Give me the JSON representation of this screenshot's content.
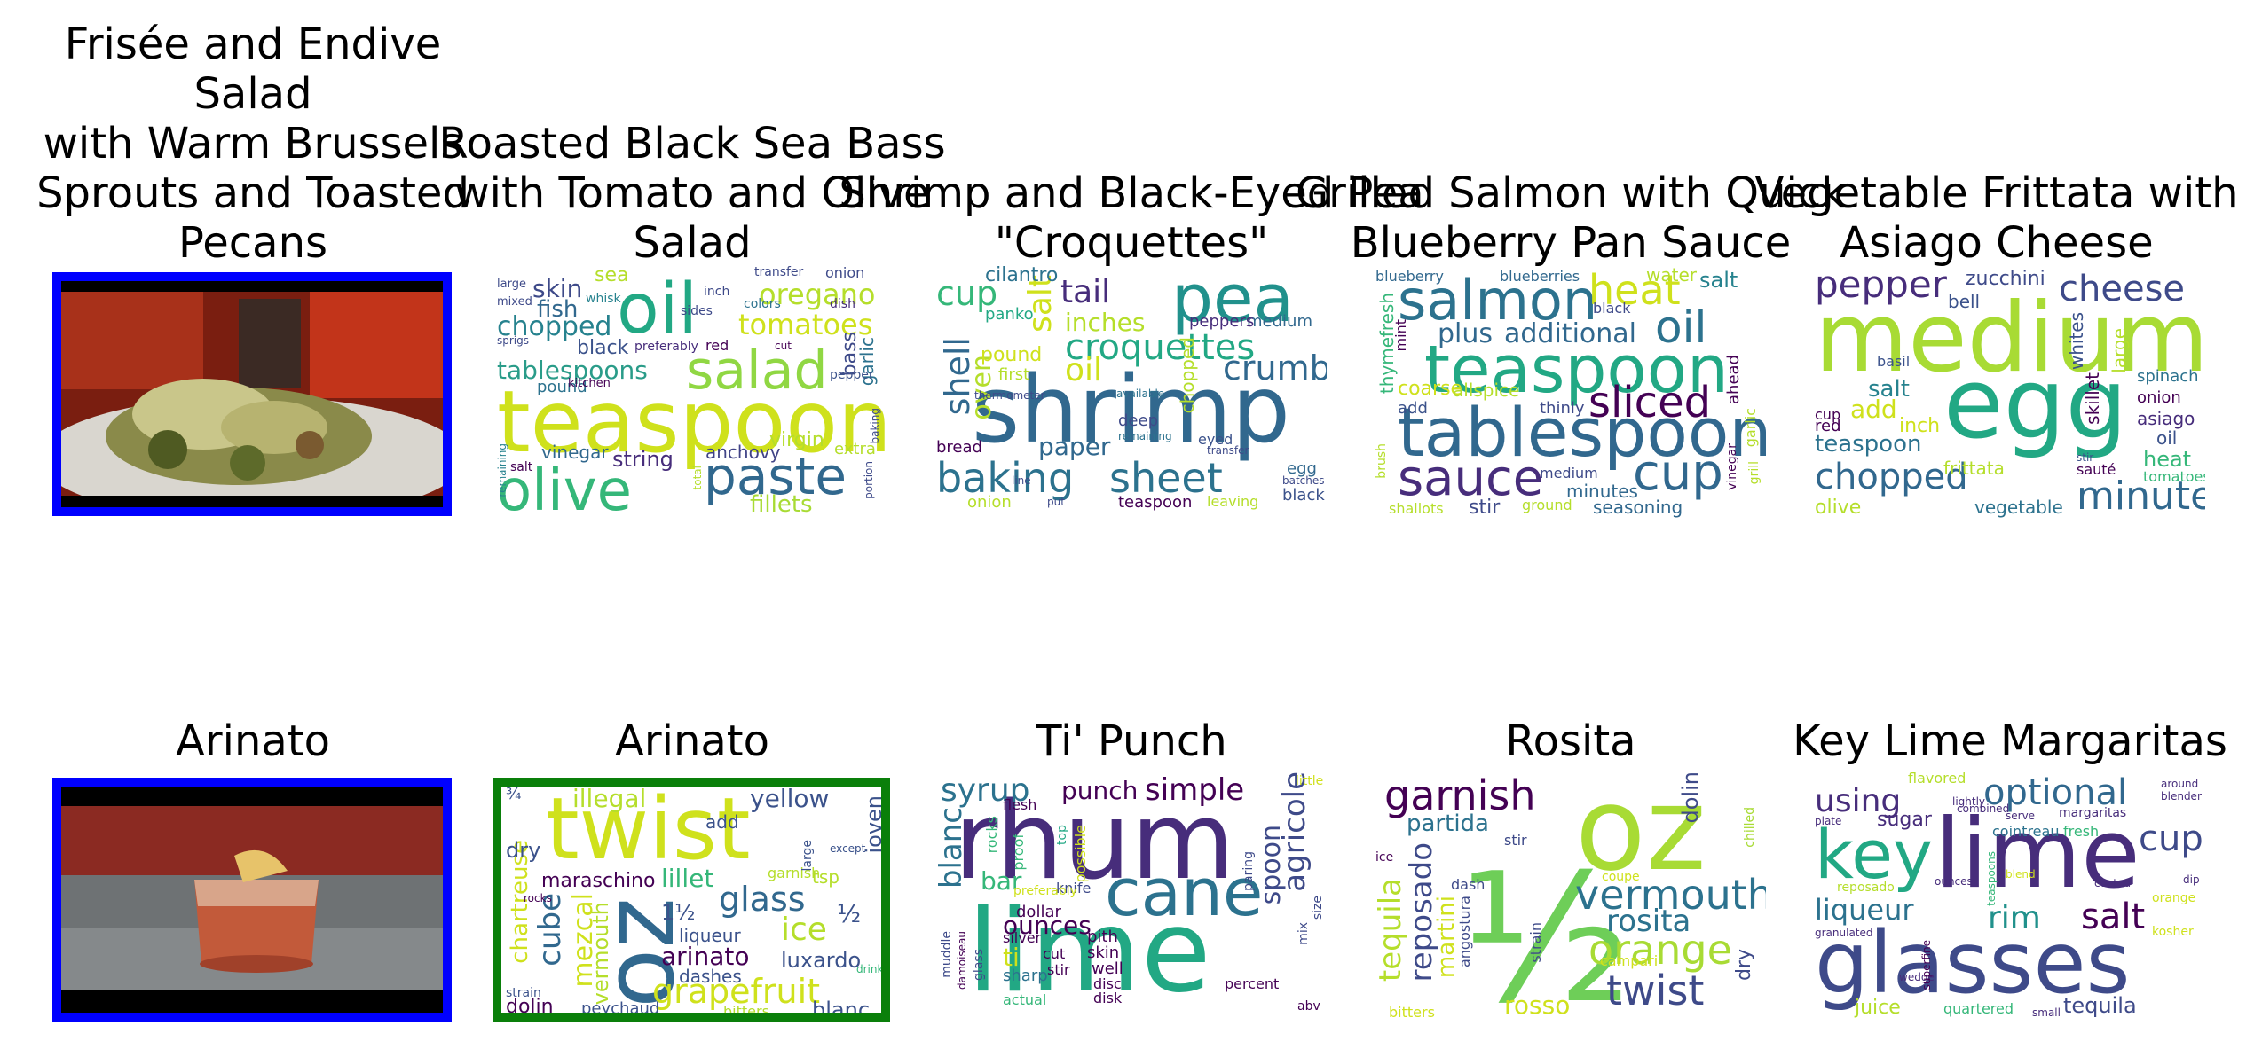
{
  "palette": {
    "frame_blue": "#0000ff",
    "frame_green": "#0a7f0a"
  },
  "top_row": [
    {
      "title_lines": [
        "Frisée and Endive",
        "Salad",
        "with Warm Brussels",
        "Sprouts and Toasted",
        "Pecans"
      ],
      "kind": "photo"
    },
    {
      "title_lines": [
        "Roasted Black Sea Bass",
        "with Tomato and Olive",
        "Salad"
      ],
      "kind": "wordcloud"
    },
    {
      "title_lines": [
        "Shrimp and Black-Eyed Pea",
        "\"Croquettes\""
      ],
      "kind": "wordcloud"
    },
    {
      "title_lines": [
        "Grilled Salmon with Quick",
        "Blueberry Pan Sauce"
      ],
      "kind": "wordcloud"
    },
    {
      "title_lines": [
        "Vegetable Frittata with",
        "Asiago Cheese"
      ],
      "kind": "wordcloud"
    }
  ],
  "bottom_row": [
    {
      "title": "Arinato",
      "kind": "photo"
    },
    {
      "title": "Arinato",
      "kind": "wordcloud"
    },
    {
      "title": "Ti' Punch",
      "kind": "wordcloud"
    },
    {
      "title": "Rosita",
      "kind": "wordcloud"
    },
    {
      "title": "Key Lime Margaritas",
      "kind": "wordcloud"
    }
  ],
  "clouds": {
    "bass": [
      "teaspoon",
      "oil",
      "olive",
      "salad",
      "paste",
      "tomatoes",
      "oregano",
      "chopped",
      "tablespoons",
      "skin",
      "fish",
      "fillets",
      "anchovy",
      "string",
      "vinegar",
      "black",
      "pound",
      "extra",
      "virgin",
      "garlic",
      "bass",
      "pepper",
      "sea",
      "red",
      "salt",
      "kitchen",
      "large",
      "mixed",
      "sprigs",
      "whisk",
      "onion",
      "dish",
      "inch",
      "sides",
      "transfer",
      "colors",
      "baking",
      "portion",
      "total",
      "remaining",
      "preferably",
      "cut"
    ],
    "shrimp": [
      "shrimp",
      "pea",
      "croquettes",
      "baking",
      "sheet",
      "cup",
      "tail",
      "crumbs",
      "inches",
      "shell",
      "salt",
      "oil",
      "oven",
      "panko",
      "pound",
      "paper",
      "deep",
      "eyed",
      "first",
      "bread",
      "cilantro",
      "egg",
      "medium",
      "peppers",
      "black",
      "teaspoon",
      "leaving",
      "onion",
      "thermometer",
      "chopped",
      "remaining",
      "available",
      "put",
      "transfer",
      "batches",
      "line"
    ],
    "salmon": [
      "tablespoon",
      "teaspoon",
      "salmon",
      "sauce",
      "cup",
      "sliced",
      "heat",
      "oil",
      "plus",
      "additional",
      "blueberry",
      "blueberries",
      "thyme",
      "fresh",
      "mint",
      "coarse",
      "allspice",
      "add",
      "thinly",
      "minutes",
      "seasoning",
      "medium",
      "stir",
      "ground",
      "shallots",
      "salt",
      "water",
      "black",
      "ahead",
      "garlic",
      "vinegar",
      "brush",
      "grill"
    ],
    "frittata": [
      "medium",
      "egg",
      "pepper",
      "cheese",
      "chopped",
      "minute",
      "salt",
      "add",
      "teaspoon",
      "red",
      "inch",
      "frittata",
      "olive",
      "vegetable",
      "zucchini",
      "bell",
      "basil",
      "whites",
      "large",
      "skillet",
      "spinach",
      "onion",
      "asiago",
      "heat",
      "tomatoes",
      "oil",
      "sauté",
      "cup",
      "stir"
    ],
    "arinato": [
      "twist",
      "oz",
      "glass",
      "cube",
      "mezcal",
      "vermouth",
      "chartreuse",
      "lillet",
      "maraschino",
      "arinato",
      "grapefruit",
      "dashes",
      "liqueur",
      "ice",
      "luxardo",
      "yellow",
      "illegal",
      "add",
      "dry",
      "joven",
      "tsp",
      "garnish",
      "large",
      "rocks",
      "strain",
      "dolin",
      "peychaud",
      "bitters",
      "blanc",
      "except",
      "drink",
      "½",
      "¾",
      "1½"
    ],
    "tipunch": [
      "rhum",
      "lime",
      "cane",
      "syrup",
      "punch",
      "simple",
      "agricole",
      "spoon",
      "blanc",
      "bar",
      "ounces",
      "dollar",
      "flesh",
      "rocks",
      "proof",
      "possible",
      "paring",
      "knife",
      "top",
      "silver",
      "pith",
      "skin",
      "ti",
      "cut",
      "well",
      "disc",
      "disk",
      "sharp",
      "stir",
      "actual",
      "muddle",
      "glass",
      "percent",
      "mix",
      "size",
      "little",
      "abv",
      "preferably",
      "damoiseau"
    ],
    "rosita": [
      "½",
      "oz",
      "vermouth",
      "orange",
      "rosita",
      "twist",
      "garnish",
      "tequila",
      "reposado",
      "martini",
      "partida",
      "dash",
      "angostura",
      "campari",
      "dolin",
      "dry",
      "chilled",
      "stir",
      "coupe",
      "strain",
      "ice",
      "bitters",
      "rosso"
    ],
    "margarita": [
      "lime",
      "glasses",
      "key",
      "optional",
      "cup",
      "salt",
      "rim",
      "liqueur",
      "sugar",
      "using",
      "tequila",
      "juice",
      "quartered",
      "cointreau",
      "fresh",
      "flavored",
      "margaritas",
      "orange",
      "kosher",
      "blender",
      "around",
      "lightly",
      "serve",
      "teaspoons",
      "plate",
      "granulated",
      "coated",
      "blend",
      "reposado",
      "ounces",
      "dip",
      "wedge",
      "superfine",
      "small",
      "combined"
    ]
  }
}
